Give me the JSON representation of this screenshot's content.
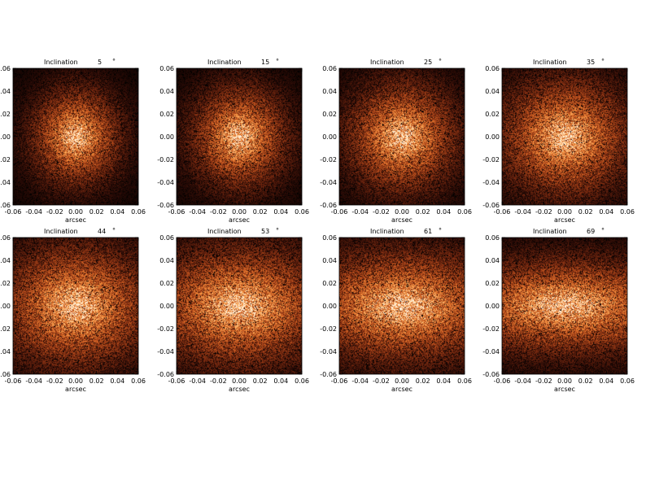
{
  "figure": {
    "description_label": "Inclination panels"
  },
  "chart_data": {
    "type": "heatmap",
    "colormap": [
      "#000000",
      "#2a0b06",
      "#7a2a10",
      "#c4561f",
      "#f08a3a",
      "#ffc27a",
      "#fff1dc"
    ],
    "xlabel": "arcsec",
    "xlim": [
      -0.06,
      0.06
    ],
    "ylim": [
      -0.06,
      0.06
    ],
    "xticks": [
      "-0.06",
      "-0.04",
      "-0.02",
      "0.00",
      "0.02",
      "0.04",
      "0.06"
    ],
    "yticks": [
      "-0.06",
      "-0.04",
      "-0.02",
      "0.00",
      "0.02",
      "0.04",
      "0.06"
    ],
    "panels": [
      {
        "title": "Inclination",
        "value": "5",
        "unit": "°",
        "inclination_deg": 5
      },
      {
        "title": "Inclination",
        "value": "15",
        "unit": "°",
        "inclination_deg": 15
      },
      {
        "title": "Inclination",
        "value": "25",
        "unit": "°",
        "inclination_deg": 25
      },
      {
        "title": "Inclination",
        "value": "35",
        "unit": "°",
        "inclination_deg": 35
      },
      {
        "title": "Inclination",
        "value": "44",
        "unit": "°",
        "inclination_deg": 44
      },
      {
        "title": "Inclination",
        "value": "53",
        "unit": "°",
        "inclination_deg": 53
      },
      {
        "title": "Inclination",
        "value": "61",
        "unit": "°",
        "inclination_deg": 61
      },
      {
        "title": "Inclination",
        "value": "69",
        "unit": "°",
        "inclination_deg": 69
      }
    ]
  }
}
